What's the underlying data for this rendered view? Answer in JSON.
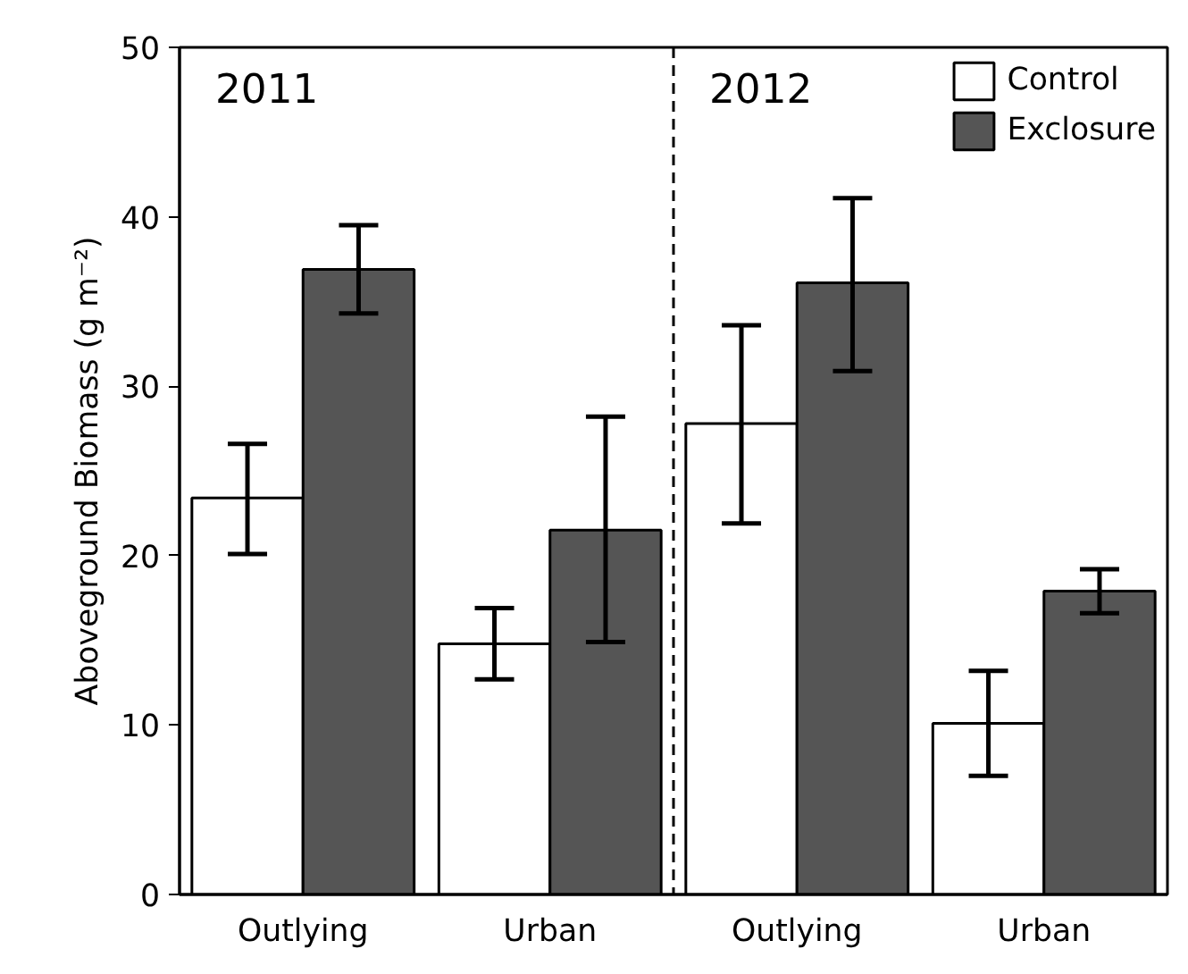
{
  "chart_data": {
    "type": "bar",
    "annotations": [
      "2011",
      "2012"
    ],
    "ylabel": "Aboveground Biomass (g m⁻²)",
    "categories": [
      "Outlying",
      "Urban",
      "Outlying",
      "Urban"
    ],
    "ylim": [
      0,
      50
    ],
    "yticks": [
      0,
      10,
      20,
      30,
      40,
      50
    ],
    "grid": false,
    "legend": "top right",
    "series": [
      {
        "name": "Control",
        "color": "#ffffff",
        "values": [
          23.4,
          14.8,
          27.8,
          10.1
        ],
        "errors": [
          [
            20.1,
            26.6
          ],
          [
            12.7,
            16.9
          ],
          [
            21.9,
            33.6
          ],
          [
            7.0,
            13.2
          ]
        ]
      },
      {
        "name": "Exclosure",
        "color": "#555555",
        "values": [
          36.9,
          21.5,
          36.1,
          17.9
        ],
        "errors": [
          [
            34.3,
            39.5
          ],
          [
            14.9,
            28.2
          ],
          [
            30.9,
            41.1
          ],
          [
            16.6,
            19.2
          ]
        ]
      }
    ]
  }
}
